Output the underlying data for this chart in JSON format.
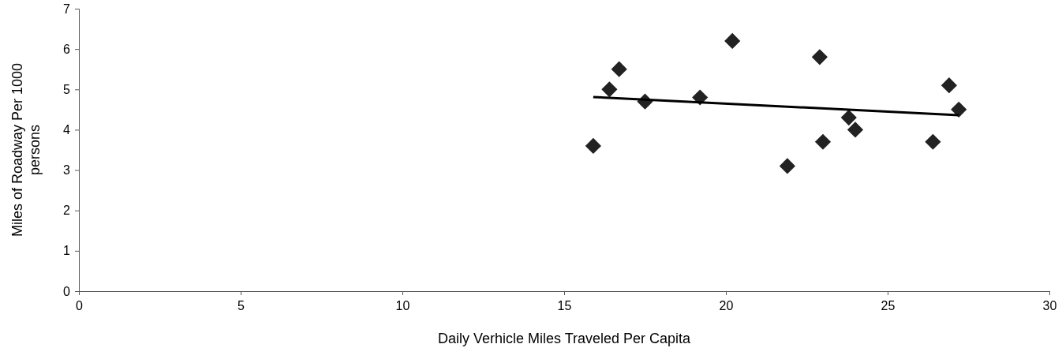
{
  "chart_data": {
    "type": "scatter",
    "xlabel": "Daily Verhicle Miles Traveled Per Capita",
    "ylabel": "Miles of Roadway Per 1000 persons",
    "xlim": [
      0,
      30
    ],
    "xticks": [
      0,
      5,
      10,
      15,
      20,
      25,
      30
    ],
    "ylim": [
      0,
      7
    ],
    "yticks": [
      0,
      1,
      2,
      3,
      4,
      5,
      6,
      7
    ],
    "grid": false,
    "series": [
      {
        "color": "#222222",
        "marker": "diamond",
        "x": [
          15.9,
          16.4,
          16.7,
          17.5,
          19.2,
          20.2,
          21.9,
          22.9,
          23.0,
          23.8,
          24.0,
          26.4,
          26.9,
          27.2
        ],
        "values": [
          3.6,
          5.0,
          5.5,
          4.7,
          4.8,
          6.2,
          3.1,
          5.8,
          3.7,
          4.3,
          4.0,
          3.7,
          5.1,
          4.5
        ]
      },
      {
        "type": "line",
        "color": "#000000",
        "marker": "none",
        "line_style": "solid",
        "x": [
          15.9,
          27.2
        ],
        "values": [
          4.81,
          4.36
        ]
      }
    ]
  }
}
